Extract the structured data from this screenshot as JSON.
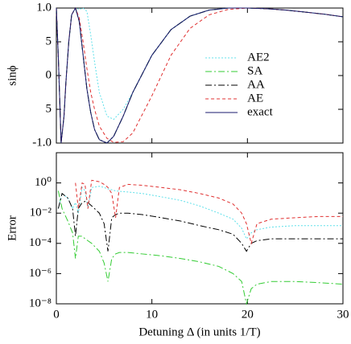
{
  "chart_data": [
    {
      "type": "line",
      "ylabel": "sinϕ",
      "xlim": [
        0,
        30
      ],
      "ylim": [
        -1,
        1
      ],
      "xticks": [
        0,
        10,
        20,
        30
      ],
      "xtick_labels": false,
      "yticks": [
        {
          "value": -1,
          "label": "-1.0"
        },
        {
          "value": -0.5,
          "label": "5"
        },
        0,
        {
          "value": 0.5,
          "label": "5"
        },
        {
          "value": 1,
          "label": "1.0"
        }
      ],
      "legend": "right",
      "x": [
        0,
        0.2,
        0.5,
        0.8,
        1.0,
        1.3,
        1.6,
        2.0,
        2.4,
        2.8,
        3.2,
        3.6,
        4.0,
        4.5,
        5.3,
        6,
        7,
        8,
        10,
        12,
        14,
        16,
        18,
        20,
        22,
        24,
        26,
        28,
        30
      ],
      "series": [
        {
          "name": "AE2",
          "color": "#5ee0ea",
          "dash": "dotted",
          "values": [
            1.0,
            0.3,
            -1.0,
            -0.6,
            -0.1,
            0.5,
            0.9,
            1.0,
            0.98,
            1.0,
            0.95,
            0.6,
            0.2,
            -0.25,
            -0.6,
            -0.65,
            -0.5,
            -0.25,
            0.3,
            0.68,
            0.88,
            0.97,
            1.0,
            1.0,
            0.99,
            0.97,
            0.94,
            0.91,
            0.87
          ]
        },
        {
          "name": "SA",
          "color": "#33cc33",
          "dash": "dashdot",
          "values": [
            1.0,
            0.3,
            -1.0,
            -0.6,
            -0.1,
            0.5,
            0.9,
            1.0,
            0.8,
            0.3,
            -0.2,
            -0.55,
            -0.8,
            -0.95,
            -1.0,
            -0.9,
            -0.6,
            -0.25,
            0.3,
            0.68,
            0.88,
            0.97,
            1.0,
            1.0,
            0.99,
            0.97,
            0.94,
            0.91,
            0.87
          ]
        },
        {
          "name": "AA",
          "color": "#000000",
          "dash": "dashdot",
          "values": [
            1.0,
            0.3,
            -1.0,
            -0.6,
            -0.1,
            0.5,
            0.9,
            1.0,
            0.8,
            0.3,
            -0.2,
            -0.55,
            -0.8,
            -0.95,
            -1.0,
            -0.9,
            -0.6,
            -0.25,
            0.3,
            0.68,
            0.88,
            0.97,
            1.0,
            1.0,
            0.99,
            0.97,
            0.94,
            0.91,
            0.87
          ]
        },
        {
          "name": "AE",
          "color": "#e03030",
          "dash": "dashed",
          "values": [
            1.0,
            0.3,
            -1.0,
            -0.6,
            -0.1,
            0.5,
            0.9,
            1.0,
            0.85,
            0.5,
            0.1,
            -0.25,
            -0.5,
            -0.75,
            -0.93,
            -0.99,
            -0.98,
            -0.85,
            -0.3,
            0.3,
            0.7,
            0.9,
            0.98,
            1.0,
            0.99,
            0.97,
            0.94,
            0.91,
            0.87
          ]
        },
        {
          "name": "exact",
          "color": "#1a1a6e",
          "dash": "solid",
          "values": [
            1.0,
            0.3,
            -1.0,
            -0.6,
            -0.1,
            0.5,
            0.9,
            1.0,
            0.8,
            0.3,
            -0.2,
            -0.55,
            -0.8,
            -0.95,
            -1.0,
            -0.9,
            -0.6,
            -0.25,
            0.3,
            0.68,
            0.88,
            0.97,
            1.0,
            1.0,
            0.99,
            0.97,
            0.94,
            0.91,
            0.87
          ]
        }
      ]
    },
    {
      "type": "line",
      "ylabel": "Error",
      "xlabel": "Detuning Δ (in units 1/T)",
      "xlim": [
        0,
        30
      ],
      "ylim": [
        1e-08,
        100
      ],
      "log_y": true,
      "xticks": [
        0,
        10,
        20,
        30
      ],
      "xtick_labels": true,
      "yticks": [
        {
          "value": 1e-08,
          "label": "10⁻⁸"
        },
        {
          "value": 1e-06,
          "label": "10⁻⁶"
        },
        {
          "value": 0.0001,
          "label": "10⁻⁴"
        },
        {
          "value": 0.01,
          "label": "10⁻²"
        },
        {
          "value": 1,
          "label": "10⁰"
        }
      ],
      "x": [
        0.2,
        0.6,
        1.2,
        1.7,
        2.0,
        2.3,
        2.7,
        3.0,
        3.3,
        3.7,
        4.5,
        5.0,
        5.4,
        5.8,
        6.2,
        6.6,
        7.5,
        9,
        11,
        13,
        15,
        17,
        18.5,
        19.4,
        19.9,
        20.4,
        21,
        22.5,
        25,
        27.5,
        30
      ],
      "series": [
        {
          "color": "#5ee0ea",
          "dash": "dotted",
          "values": [
            0.02,
            0.2,
            0.1,
            0.02,
            0.05,
            0.01,
            0.5,
            0.3,
            0.02,
            0.5,
            0.6,
            0.5,
            0.4,
            0.35,
            0.3,
            0.28,
            0.25,
            0.2,
            0.12,
            0.07,
            0.03,
            0.01,
            0.004,
            0.001,
            0.0002,
            0.0005,
            0.0008,
            0.0012,
            0.0015,
            0.0015,
            0.0015
          ]
        },
        {
          "color": "#33cc33",
          "dash": "dashdot",
          "values": [
            0.3,
            0.02,
            0.003,
            0.0005,
            1e-05,
            0.0003,
            0.0003,
            0.0002,
            0.00015,
            0.0001,
            3e-05,
            5e-06,
            3e-07,
            1e-05,
            2e-05,
            2.5e-05,
            2.5e-05,
            2e-05,
            1.5e-05,
            1e-05,
            6e-06,
            3e-06,
            1e-06,
            3e-07,
            1e-08,
            1e-07,
            2e-07,
            3e-07,
            3e-07,
            2.5e-07,
            2e-07
          ]
        },
        {
          "color": "#000000",
          "dash": "dashdot",
          "values": [
            0.02,
            0.2,
            0.1,
            0.02,
            0.0003,
            0.02,
            0.05,
            0.06,
            0.05,
            0.03,
            0.01,
            0.002,
            3e-05,
            0.005,
            0.008,
            0.01,
            0.01,
            0.008,
            0.005,
            0.003,
            0.0015,
            0.0008,
            0.0004,
            0.0001,
            3e-05,
            0.0001,
            0.00015,
            0.0002,
            0.0002,
            0.0002,
            0.0002
          ]
        },
        {
          "color": "#e03030",
          "dash": "dashed",
          "values": [
            null,
            null,
            null,
            null,
            1.0,
            0.02,
            1.0,
            0.8,
            0.02,
            1.5,
            1.2,
            0.8,
            0.5,
            0.2,
            0.005,
            0.5,
            0.8,
            0.7,
            0.5,
            0.35,
            0.2,
            0.1,
            0.04,
            0.01,
            0.002,
            0.0001,
            0.002,
            0.004,
            0.005,
            0.006,
            0.006
          ]
        }
      ]
    }
  ]
}
